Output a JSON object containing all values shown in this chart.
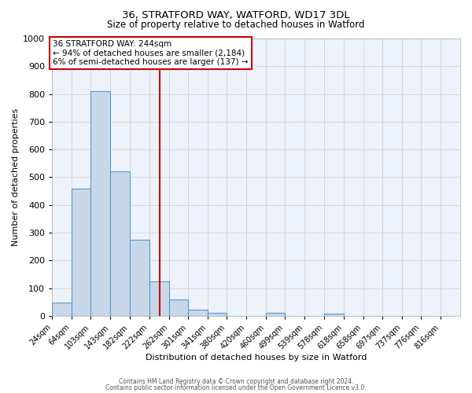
{
  "title": "36, STRATFORD WAY, WATFORD, WD17 3DL",
  "subtitle": "Size of property relative to detached houses in Watford",
  "xlabel": "Distribution of detached houses by size in Watford",
  "ylabel": "Number of detached properties",
  "bar_color": "#c8d8e8",
  "bar_edge_color": "#5599cc",
  "background_color": "#eef2fa",
  "grid_color": "#cccccc",
  "categories": [
    "24sqm",
    "64sqm",
    "103sqm",
    "143sqm",
    "182sqm",
    "222sqm",
    "262sqm",
    "301sqm",
    "341sqm",
    "380sqm",
    "420sqm",
    "460sqm",
    "499sqm",
    "539sqm",
    "578sqm",
    "618sqm",
    "658sqm",
    "697sqm",
    "737sqm",
    "776sqm",
    "816sqm"
  ],
  "values": [
    47,
    460,
    810,
    520,
    275,
    125,
    60,
    22,
    12,
    0,
    0,
    10,
    0,
    0,
    7,
    0,
    0,
    0,
    0,
    0,
    0
  ],
  "bin_edges": [
    24,
    64,
    103,
    143,
    182,
    222,
    262,
    301,
    341,
    380,
    420,
    460,
    499,
    539,
    578,
    618,
    658,
    697,
    737,
    776,
    816,
    856
  ],
  "vline_x": 244,
  "vline_color": "#cc0000",
  "annotation_line1": "36 STRATFORD WAY: 244sqm",
  "annotation_line2": "← 94% of detached houses are smaller (2,184)",
  "annotation_line3": "6% of semi-detached houses are larger (137) →",
  "annotation_box_edgecolor": "#cc0000",
  "ylim": [
    0,
    1000
  ],
  "footer1": "Contains HM Land Registry data © Crown copyright and database right 2024.",
  "footer2": "Contains public sector information licensed under the Open Government Licence v3.0."
}
